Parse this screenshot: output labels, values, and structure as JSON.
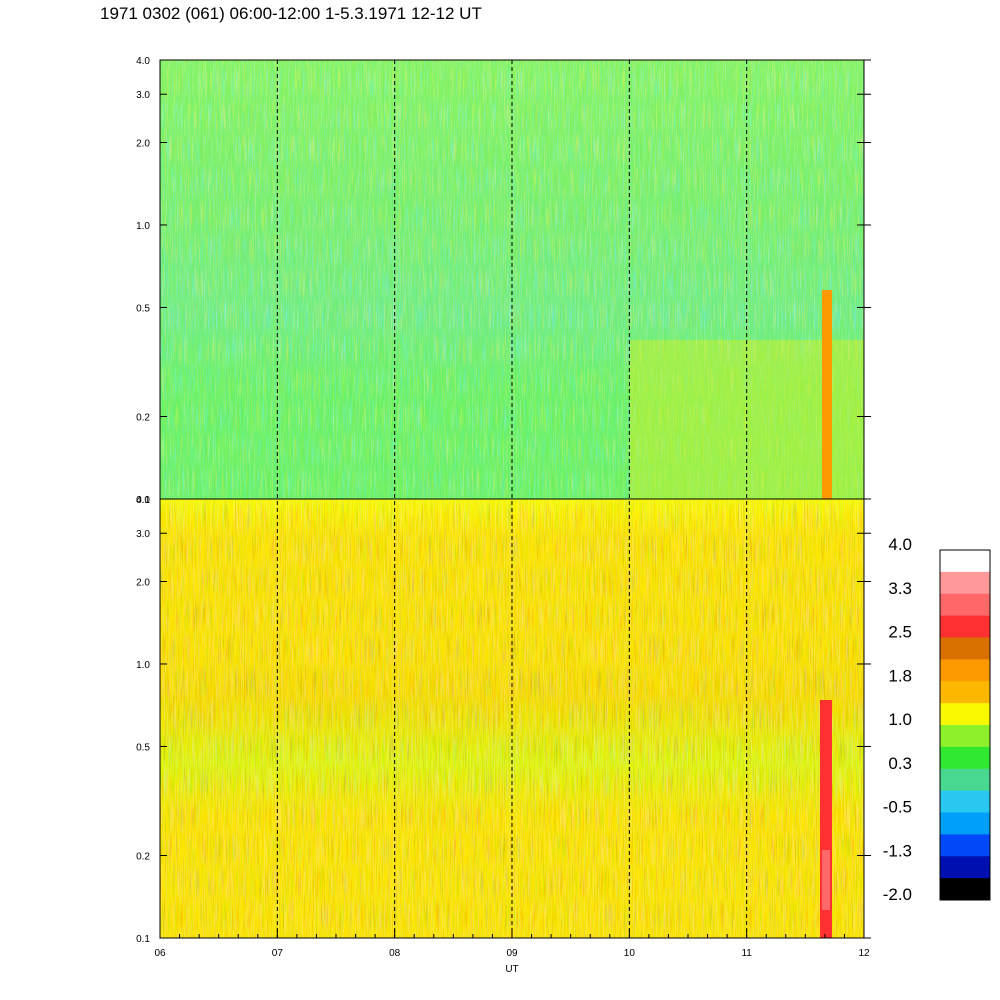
{
  "title": "1971 0302 (061) 06:00-12:00 1-5.3.1971  12-12 UT",
  "chart_data": {
    "type": "heatmap",
    "xlabel": "UT",
    "x_ticks": [
      "06",
      "07",
      "08",
      "09",
      "10",
      "11",
      "12"
    ],
    "xlim": [
      6,
      12
    ],
    "panels": [
      {
        "name": "top",
        "y_scale": "log",
        "ylim": [
          0.1,
          4.0
        ],
        "y_ticks": [
          "0.1",
          "0.2",
          "0.5",
          "1.0",
          "2.0",
          "3.0",
          "4.0"
        ],
        "dominant_colors": [
          "#30e830",
          "#8ef02a",
          "#48d890",
          "#28c8f0"
        ]
      },
      {
        "name": "bottom",
        "y_scale": "log",
        "ylim": [
          0.1,
          4.0
        ],
        "y_ticks": [
          "0.1",
          "0.2",
          "0.5",
          "1.0",
          "2.0",
          "3.0",
          "4.0"
        ],
        "dominant_colors": [
          "#fcb800",
          "#fc9800",
          "#f8f800",
          "#8ef02a"
        ]
      }
    ],
    "dashed_vlines": [
      "07",
      "08",
      "09",
      "10",
      "11"
    ],
    "colorbar": {
      "labels": [
        "4.0",
        "3.3",
        "2.5",
        "1.8",
        "1.0",
        "0.3",
        "-0.5",
        "-1.3",
        "-2.0"
      ],
      "colors_top_to_bottom": [
        "#ffffff",
        "#ff9898",
        "#ff6868",
        "#ff3030",
        "#d87000",
        "#fc9800",
        "#fcb800",
        "#f8f800",
        "#8ef02a",
        "#30e830",
        "#48d890",
        "#28c8f0",
        "#00a0f8",
        "#0048f8",
        "#0010b0",
        "#000000"
      ]
    }
  }
}
